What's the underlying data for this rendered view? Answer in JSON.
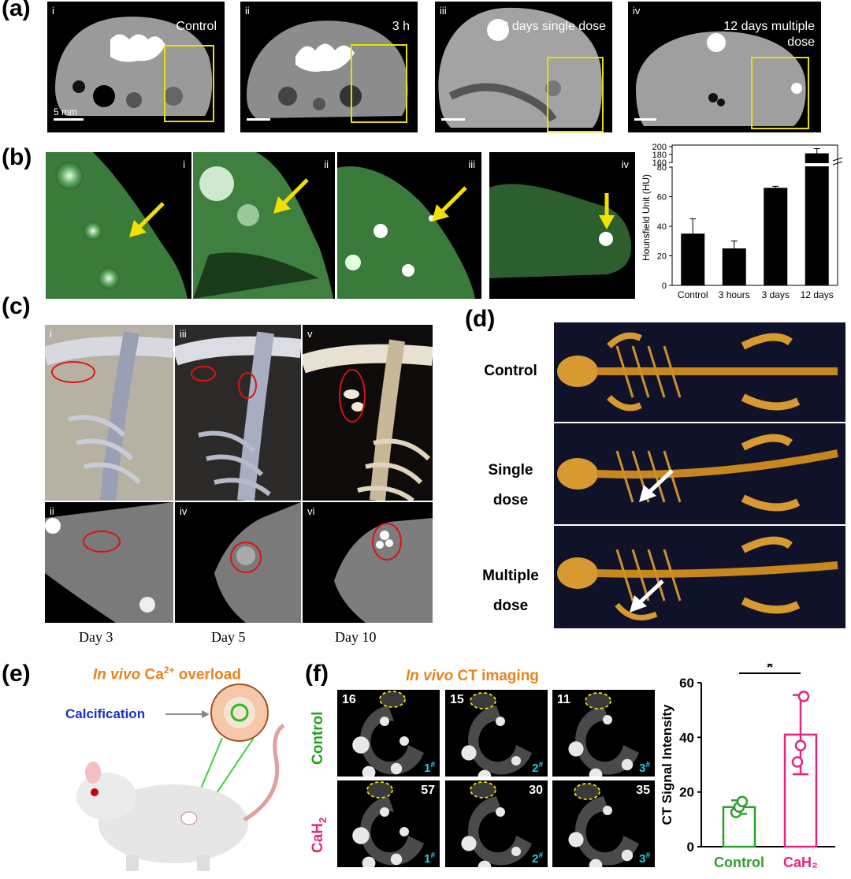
{
  "panel_labels": {
    "a": "(a)",
    "b": "(b)",
    "c": "(c)",
    "d": "(d)",
    "e": "(e)",
    "f": "(f)"
  },
  "a": {
    "panels": [
      {
        "roman": "i",
        "label": "Control"
      },
      {
        "roman": "ii",
        "label": "3 h"
      },
      {
        "roman": "iii",
        "label": "3 days single dose"
      },
      {
        "roman": "iv",
        "label": "12 days multiple dose"
      }
    ],
    "scale_label": "5 mm"
  },
  "b": {
    "romans": [
      "i",
      "ii",
      "iii",
      "iv"
    ],
    "chart_data": {
      "type": "bar",
      "categories": [
        "Control",
        "3 hours",
        "3 days",
        "12 days"
      ],
      "values": [
        35,
        25,
        66,
        183
      ],
      "errors": [
        10,
        5,
        1,
        12
      ],
      "ylabel": "Hounsfield Unit (HU)",
      "yticks_lower": [
        0,
        20,
        40,
        60,
        80
      ],
      "yticks_upper": [
        160,
        180,
        200
      ],
      "axis_break": true,
      "colors": {
        "bar": "#000000"
      }
    }
  },
  "c": {
    "romans": [
      "i",
      "iii",
      "v",
      "ii",
      "iv",
      "vi"
    ],
    "days": [
      "Day 3",
      "Day 5",
      "Day 10"
    ]
  },
  "d": {
    "labels": [
      "Control",
      "Single dose",
      "Multiple dose"
    ]
  },
  "e": {
    "title_italic": "In vivo",
    "title_rest": " Ca",
    "title_sup": "2+",
    "title_end": " overload",
    "calcification": "Calcification"
  },
  "f": {
    "title_italic": "In vivo",
    "title_rest": " CT imaging",
    "row_labels": [
      "Control",
      "CaH"
    ],
    "row_label_sub": "2",
    "numbers_top": [
      "16",
      "15",
      "11"
    ],
    "numbers_bottom": [
      "57",
      "30",
      "35"
    ],
    "subjects": [
      "1",
      "2",
      "3"
    ],
    "subject_sup": "#",
    "chart_data": {
      "type": "bar",
      "categories": [
        "Control",
        "CaH₂"
      ],
      "values": [
        14.5,
        41
      ],
      "errors": [
        2.5,
        14.5
      ],
      "points": [
        [
          12.5,
          14.5,
          16.5
        ],
        [
          31,
          37,
          55
        ]
      ],
      "ylabel": "CT Signal Intensity",
      "ylim": [
        0,
        60
      ],
      "yticks": [
        0,
        20,
        40,
        60
      ],
      "significance": "*",
      "colors": {
        "Control": "#2ea02e",
        "CaH2": "#e3267c"
      }
    }
  }
}
